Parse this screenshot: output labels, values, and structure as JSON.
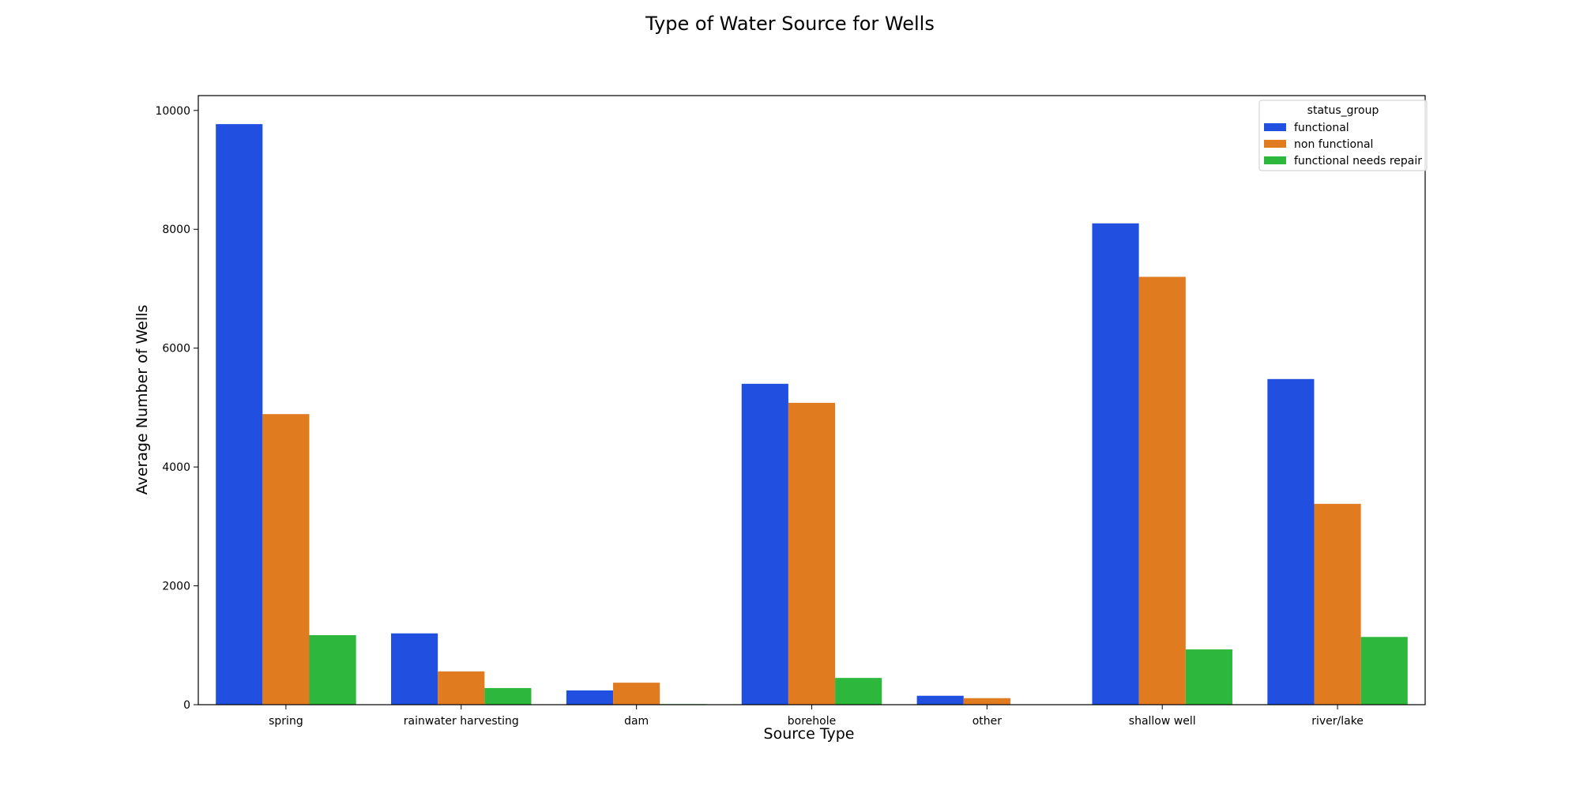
{
  "chart_data": {
    "type": "bar",
    "title": "Type of Water Source for Wells",
    "xlabel": "Source Type",
    "ylabel": "Average Number of Wells",
    "categories": [
      "spring",
      "rainwater harvesting",
      "dam",
      "borehole",
      "other",
      "shallow well",
      "river/lake"
    ],
    "series": [
      {
        "name": "functional",
        "color": "#2150e0",
        "values": [
          9770,
          1200,
          240,
          5400,
          150,
          8100,
          5480
        ]
      },
      {
        "name": "non functional",
        "color": "#e07b1f",
        "values": [
          4890,
          560,
          370,
          5080,
          110,
          7200,
          3380
        ]
      },
      {
        "name": "functional needs repair",
        "color": "#2db83d",
        "values": [
          1170,
          280,
          10,
          450,
          0,
          930,
          1140
        ]
      }
    ],
    "ylim": [
      0,
      10250
    ],
    "yticks": [
      0,
      2000,
      4000,
      6000,
      8000,
      10000
    ],
    "legend": {
      "title": "status_group",
      "placement": "top-right"
    },
    "grid": false
  }
}
